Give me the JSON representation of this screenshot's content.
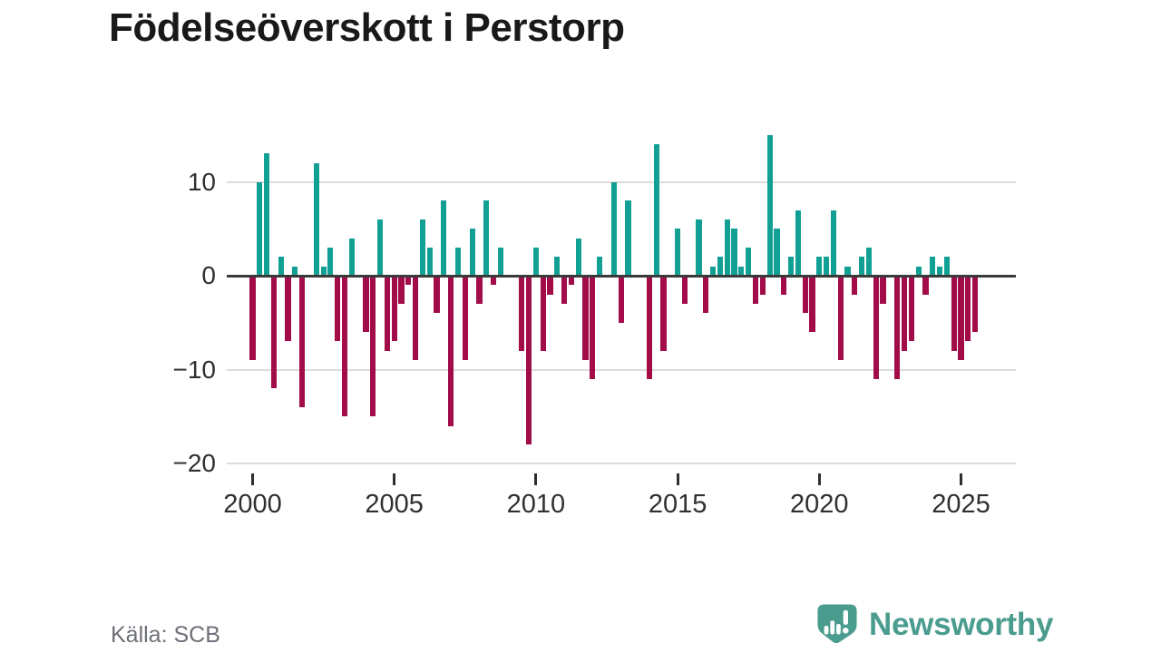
{
  "title": "Födelseöverskott i Perstorp",
  "footer": {
    "source": "Källa: SCB",
    "brand": "Newsworthy"
  },
  "colors": {
    "positive_bar": "#12a095",
    "negative_bar": "#a10c49",
    "gridline": "#dcdcdc",
    "zero_line": "#3a3a3a",
    "axis_text": "#303030",
    "title_text": "#191919",
    "source_text": "#6d7078",
    "brand_teal": "#4a9c8e",
    "background": "#ffffff"
  },
  "chart_data": {
    "type": "bar",
    "title": "Födelseöverskott i Perstorp",
    "frequency": "quarterly",
    "start_period": "2000 Q1",
    "end_period": "2025 Q3",
    "values": [
      -9,
      10,
      13,
      -12,
      2,
      -7,
      1,
      -14,
      0,
      12,
      1,
      3,
      -7,
      -15,
      4,
      0,
      -6,
      -15,
      6,
      -8,
      -7,
      -3,
      -1,
      -9,
      6,
      3,
      -4,
      8,
      -16,
      3,
      -9,
      5,
      -3,
      8,
      -1,
      3,
      0,
      0,
      -8,
      -18,
      3,
      -8,
      -2,
      2,
      -3,
      -1,
      4,
      -9,
      -11,
      2,
      0,
      10,
      -5,
      8,
      0,
      0,
      -11,
      14,
      -8,
      0,
      5,
      -3,
      0,
      6,
      -4,
      1,
      2,
      6,
      5,
      1,
      3,
      -3,
      -2,
      15,
      5,
      -2,
      2,
      7,
      -4,
      -6,
      2,
      2,
      7,
      -9,
      1,
      -2,
      2,
      3,
      -11,
      -3,
      0,
      -11,
      -8,
      -7,
      1,
      -2,
      2,
      1,
      2,
      -8,
      -9,
      -7,
      -6
    ],
    "x_ticks": [
      2000,
      2005,
      2010,
      2015,
      2020,
      2025
    ],
    "y_ticks": [
      10,
      0,
      -10,
      -20
    ],
    "ylim": [
      -20,
      16
    ],
    "grid": "horizontal",
    "legend": "none",
    "source": "SCB"
  }
}
